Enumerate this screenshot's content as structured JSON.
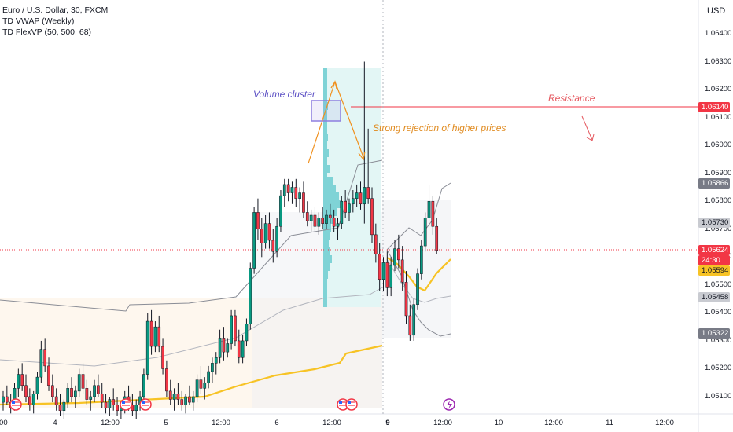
{
  "legend": {
    "symbol": "Euro / U.S. Dollar, 30, FXCM",
    "ind1": "TD VWAP (Weekly)",
    "ind2": "TD FlexVP (50, 500, 68)"
  },
  "currency": "USD",
  "annotations": {
    "volume_cluster": "Volume cluster",
    "rejection": "Strong rejection of higher prices",
    "resistance": "Resistance"
  },
  "price_tags": [
    {
      "id": "resistance",
      "label": "1.06140",
      "bg": "#f23645",
      "fg": "#ffffff"
    },
    {
      "id": "upper-band",
      "label": "1.05866",
      "bg": "#787b86",
      "fg": "#ffffff"
    },
    {
      "id": "band-mid",
      "label": "1.05730",
      "bg": "#c9cbd1",
      "fg": "#131722"
    },
    {
      "id": "last-price",
      "label": "1.05624",
      "bg": "#f23645",
      "fg": "#ffffff"
    },
    {
      "id": "countdown",
      "label": "24:30",
      "bg": "#f23645",
      "fg": "#ffffff"
    },
    {
      "id": "vwap",
      "label": "1.05594",
      "bg": "#f7c325",
      "fg": "#131722"
    },
    {
      "id": "lower-mid",
      "label": "1.05458",
      "bg": "#c9cbd1",
      "fg": "#131722"
    },
    {
      "id": "lower-band",
      "label": "1.05322",
      "bg": "#787b86",
      "fg": "#ffffff"
    }
  ],
  "colors": {
    "up": "#089981",
    "down": "#f23645",
    "vwap": "#f7c325",
    "profile": "#7fd3d6",
    "resistance": "#f23645",
    "volume_box": "#8e7fe0",
    "arrow": "#f0901d",
    "band": "#9598a1"
  },
  "chart_data": {
    "type": "candlestick",
    "title": "Euro / U.S. Dollar, 30, FXCM",
    "ylim": [
      1.0502,
      1.0656
    ],
    "y_ticks": [
      "1.06400",
      "1.06300",
      "1.06200",
      "1.06100",
      "1.06000",
      "1.05900",
      "1.05800",
      "1.05700",
      "1.05600",
      "1.05500",
      "1.05400",
      "1.05300",
      "1.05200",
      "1.05100"
    ],
    "x_ticks": [
      {
        "label": ":00",
        "bold": false
      },
      {
        "label": "4",
        "bold": false
      },
      {
        "label": "12:00",
        "bold": false
      },
      {
        "label": "5",
        "bold": false
      },
      {
        "label": "12:00",
        "bold": false
      },
      {
        "label": "6",
        "bold": false
      },
      {
        "label": "12:00",
        "bold": false
      },
      {
        "label": "9",
        "bold": true
      },
      {
        "label": "12:00",
        "bold": false
      },
      {
        "label": "10",
        "bold": false
      },
      {
        "label": "12:00",
        "bold": false
      },
      {
        "label": "11",
        "bold": false
      },
      {
        "label": "12:00",
        "bold": false
      }
    ],
    "resistance_level": 1.0614,
    "last_price": 1.05624,
    "candles": [
      [
        1.0508,
        1.0512,
        1.0505,
        1.051
      ],
      [
        1.051,
        1.0514,
        1.0507,
        1.0508
      ],
      [
        1.0508,
        1.0511,
        1.0504,
        1.0506
      ],
      [
        1.0506,
        1.0515,
        1.0505,
        1.0513
      ],
      [
        1.0513,
        1.052,
        1.051,
        1.0518
      ],
      [
        1.0518,
        1.0522,
        1.0512,
        1.0514
      ],
      [
        1.0514,
        1.0518,
        1.0508,
        1.051
      ],
      [
        1.051,
        1.0513,
        1.0505,
        1.0507
      ],
      [
        1.0507,
        1.0512,
        1.0504,
        1.0511
      ],
      [
        1.0511,
        1.0519,
        1.0509,
        1.0517
      ],
      [
        1.0517,
        1.053,
        1.0515,
        1.0527
      ],
      [
        1.0527,
        1.0531,
        1.0519,
        1.0521
      ],
      [
        1.0521,
        1.0524,
        1.0512,
        1.0514
      ],
      [
        1.0514,
        1.0518,
        1.0508,
        1.051
      ],
      [
        1.051,
        1.0513,
        1.0505,
        1.0507
      ],
      [
        1.0507,
        1.0511,
        1.0503,
        1.0505
      ],
      [
        1.0505,
        1.0509,
        1.0502,
        1.0508
      ],
      [
        1.0508,
        1.0515,
        1.0506,
        1.0513
      ],
      [
        1.0513,
        1.0517,
        1.0508,
        1.051
      ],
      [
        1.051,
        1.0514,
        1.0506,
        1.0512
      ],
      [
        1.0512,
        1.052,
        1.051,
        1.0518
      ],
      [
        1.0518,
        1.0522,
        1.0511,
        1.0513
      ],
      [
        1.0513,
        1.0516,
        1.0507,
        1.0509
      ],
      [
        1.0509,
        1.0512,
        1.0505,
        1.051
      ],
      [
        1.051,
        1.0516,
        1.0508,
        1.0514
      ],
      [
        1.0514,
        1.0518,
        1.051,
        1.0511
      ],
      [
        1.0511,
        1.0515,
        1.0506,
        1.0508
      ],
      [
        1.0508,
        1.0511,
        1.0504,
        1.0506
      ],
      [
        1.0506,
        1.051,
        1.0503,
        1.0509
      ],
      [
        1.0509,
        1.0513,
        1.0505,
        1.0507
      ],
      [
        1.0507,
        1.051,
        1.0503,
        1.0505
      ],
      [
        1.0505,
        1.0508,
        1.0502,
        1.0506
      ],
      [
        1.0506,
        1.0512,
        1.0504,
        1.051
      ],
      [
        1.051,
        1.0514,
        1.0505,
        1.0507
      ],
      [
        1.0507,
        1.0511,
        1.0503,
        1.0505
      ],
      [
        1.0505,
        1.0509,
        1.0502,
        1.0507
      ],
      [
        1.0507,
        1.0512,
        1.0505,
        1.051
      ],
      [
        1.051,
        1.052,
        1.0508,
        1.0518
      ],
      [
        1.0518,
        1.054,
        1.0516,
        1.0537
      ],
      [
        1.0537,
        1.0541,
        1.0525,
        1.0528
      ],
      [
        1.0528,
        1.0537,
        1.0526,
        1.0535
      ],
      [
        1.0535,
        1.0539,
        1.0526,
        1.0528
      ],
      [
        1.0528,
        1.0531,
        1.0518,
        1.052
      ],
      [
        1.052,
        1.0523,
        1.051,
        1.0512
      ],
      [
        1.0512,
        1.0516,
        1.0507,
        1.0509
      ],
      [
        1.0509,
        1.0513,
        1.0505,
        1.0511
      ],
      [
        1.0511,
        1.0515,
        1.0507,
        1.0509
      ],
      [
        1.0509,
        1.0512,
        1.0505,
        1.0507
      ],
      [
        1.0507,
        1.0511,
        1.0504,
        1.051
      ],
      [
        1.051,
        1.0514,
        1.0507,
        1.0508
      ],
      [
        1.0508,
        1.0512,
        1.0505,
        1.051
      ],
      [
        1.051,
        1.0518,
        1.0508,
        1.0516
      ],
      [
        1.0516,
        1.0521,
        1.0511,
        1.0513
      ],
      [
        1.0513,
        1.0517,
        1.0509,
        1.0515
      ],
      [
        1.0515,
        1.0521,
        1.0513,
        1.0519
      ],
      [
        1.0519,
        1.0524,
        1.0515,
        1.0522
      ],
      [
        1.0522,
        1.0526,
        1.0518,
        1.0524
      ],
      [
        1.0524,
        1.0534,
        1.0522,
        1.0531
      ],
      [
        1.0531,
        1.0535,
        1.0523,
        1.0526
      ],
      [
        1.0526,
        1.0531,
        1.0524,
        1.0529
      ],
      [
        1.0529,
        1.0541,
        1.0527,
        1.0539
      ],
      [
        1.0539,
        1.0541,
        1.0528,
        1.053
      ],
      [
        1.053,
        1.0534,
        1.0522,
        1.0524
      ],
      [
        1.0524,
        1.0532,
        1.0522,
        1.053
      ],
      [
        1.053,
        1.0538,
        1.0528,
        1.0536
      ],
      [
        1.0536,
        1.0558,
        1.0534,
        1.0556
      ],
      [
        1.0556,
        1.0578,
        1.0554,
        1.0576
      ],
      [
        1.0576,
        1.0581,
        1.0566,
        1.057
      ],
      [
        1.057,
        1.0574,
        1.056,
        1.0565
      ],
      [
        1.0565,
        1.0575,
        1.0563,
        1.0572
      ],
      [
        1.0572,
        1.0576,
        1.0563,
        1.0566
      ],
      [
        1.0566,
        1.057,
        1.0558,
        1.0562
      ],
      [
        1.0562,
        1.0574,
        1.056,
        1.0571
      ],
      [
        1.0571,
        1.0584,
        1.0569,
        1.0582
      ],
      [
        1.0582,
        1.0588,
        1.0578,
        1.0586
      ],
      [
        1.0586,
        1.0588,
        1.058,
        1.0583
      ],
      [
        1.0583,
        1.0587,
        1.0579,
        1.0585
      ],
      [
        1.0585,
        1.0588,
        1.0578,
        1.0581
      ],
      [
        1.0581,
        1.0585,
        1.0576,
        1.0583
      ],
      [
        1.0583,
        1.0587,
        1.0574,
        1.0576
      ],
      [
        1.0576,
        1.058,
        1.0571,
        1.0573
      ],
      [
        1.0573,
        1.0577,
        1.0569,
        1.0575
      ],
      [
        1.0575,
        1.0578,
        1.0569,
        1.0571
      ],
      [
        1.0571,
        1.0576,
        1.0568,
        1.0574
      ],
      [
        1.0574,
        1.0578,
        1.057,
        1.0572
      ],
      [
        1.0572,
        1.0577,
        1.057,
        1.0575
      ],
      [
        1.0575,
        1.0579,
        1.0572,
        1.0574
      ],
      [
        1.0574,
        1.0577,
        1.0569,
        1.0571
      ],
      [
        1.0571,
        1.0574,
        1.0566,
        1.0572
      ],
      [
        1.0572,
        1.0582,
        1.057,
        1.058
      ],
      [
        1.058,
        1.0584,
        1.0574,
        1.0576
      ],
      [
        1.0576,
        1.0581,
        1.0573,
        1.0579
      ],
      [
        1.0579,
        1.0584,
        1.0576,
        1.0581
      ],
      [
        1.0581,
        1.0586,
        1.0578,
        1.0583
      ],
      [
        1.0583,
        1.0587,
        1.0577,
        1.0579
      ],
      [
        1.0579,
        1.063,
        1.0572,
        1.0585
      ],
      [
        1.0585,
        1.0606,
        1.0579,
        1.0581
      ],
      [
        1.0581,
        1.0585,
        1.0565,
        1.0568
      ],
      [
        1.0568,
        1.0572,
        1.0558,
        1.0561
      ],
      [
        1.0561,
        1.0565,
        1.0548,
        1.0552
      ],
      [
        1.0552,
        1.056,
        1.0548,
        1.0558
      ],
      [
        1.0558,
        1.0562,
        1.0546,
        1.0549
      ],
      [
        1.0549,
        1.056,
        1.0546,
        1.0557
      ],
      [
        1.0557,
        1.0566,
        1.0555,
        1.0563
      ],
      [
        1.0563,
        1.0568,
        1.0556,
        1.0559
      ],
      [
        1.0559,
        1.0564,
        1.0548,
        1.0551
      ],
      [
        1.0551,
        1.0555,
        1.0536,
        1.0539
      ],
      [
        1.0539,
        1.0543,
        1.053,
        1.0532
      ],
      [
        1.0532,
        1.0545,
        1.053,
        1.0543
      ],
      [
        1.0543,
        1.0556,
        1.0541,
        1.0554
      ],
      [
        1.0554,
        1.0566,
        1.0552,
        1.0564
      ],
      [
        1.0564,
        1.0576,
        1.0562,
        1.0574
      ],
      [
        1.0574,
        1.0586,
        1.0571,
        1.058
      ],
      [
        1.058,
        1.0582,
        1.0568,
        1.0571
      ],
      [
        1.0571,
        1.0574,
        1.0561,
        1.05624
      ]
    ]
  }
}
